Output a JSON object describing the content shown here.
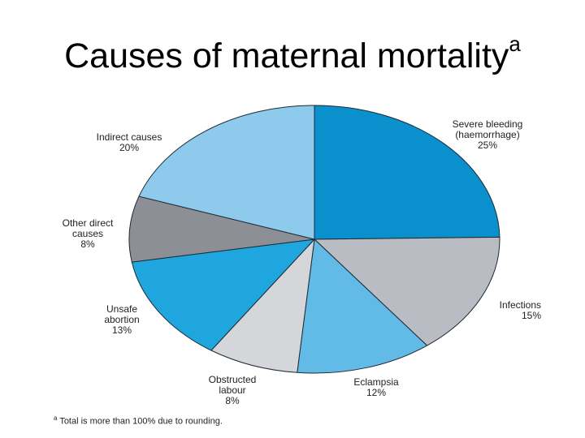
{
  "slide": {
    "title": "Causes of maternal mortality",
    "title_superscript": "a"
  },
  "chart_data": {
    "type": "pie",
    "title": "Causes of maternal mortality",
    "slices": [
      {
        "lines": [
          "Severe bleeding",
          "(haemorrhage)",
          "25%"
        ],
        "value": 25,
        "color": "#0a90cc"
      },
      {
        "lines": [
          "Infections",
          "15%"
        ],
        "value": 15,
        "color": "#b9bcc2"
      },
      {
        "lines": [
          "Eclampsia",
          "12%"
        ],
        "value": 12,
        "color": "#62bbe6"
      },
      {
        "lines": [
          "Obstructed",
          "labour",
          "8%"
        ],
        "value": 8,
        "color": "#d4d6da"
      },
      {
        "lines": [
          "Unsafe",
          "abortion",
          "13%"
        ],
        "value": 13,
        "color": "#20a6df"
      },
      {
        "lines": [
          "Other direct",
          "causes",
          "8%"
        ],
        "value": 8,
        "color": "#8c8f95"
      },
      {
        "lines": [
          "Indirect causes",
          "20%"
        ],
        "value": 20,
        "color": "#8ecaec"
      }
    ],
    "footnote_marker": "a",
    "footnote": "Total is more than 100% due to rounding."
  }
}
